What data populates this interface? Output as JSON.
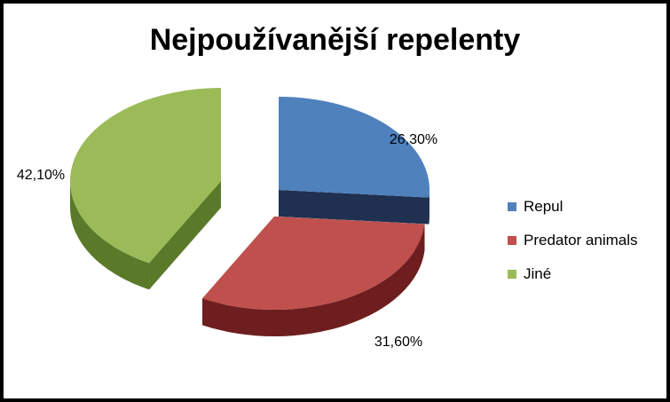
{
  "chart_data": {
    "type": "pie",
    "title": "Nejpoužívanější repelenty",
    "categories": [
      "Repul",
      "Predator animals",
      "Jiné"
    ],
    "values": [
      26.3,
      31.6,
      42.1
    ],
    "labels": [
      "26,30%",
      "31,60%",
      "42,10%"
    ],
    "colors": [
      "#4F81BD",
      "#C0504D",
      "#9BBB59"
    ],
    "side_colors": [
      "#1F3050",
      "#6E1E1E",
      "#5A7A2A"
    ],
    "exploded": true,
    "three_d": true,
    "legend": "right"
  }
}
